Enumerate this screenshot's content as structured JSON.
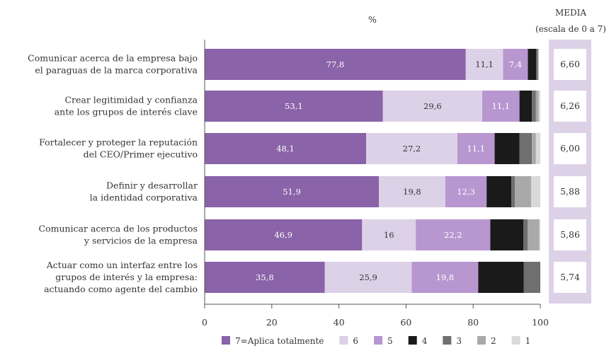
{
  "chart_data": {
    "type": "bar",
    "orientation": "horizontal",
    "stacked": true,
    "title": "",
    "xlabel": "%",
    "ylabel": "",
    "xlim": [
      0,
      100
    ],
    "xticks": [
      "0",
      "20",
      "40",
      "60",
      "80",
      "100"
    ],
    "grid": false,
    "legend_position": "bottom",
    "categories": [
      [
        "Comunicar acerca de la empresa bajo",
        "el paraguas de la marca corporativa"
      ],
      [
        "Crear legitimidad y confianza",
        "ante los grupos de interés clave"
      ],
      [
        "Fortalecer y proteger la reputación",
        "del CEO/Primer ejecutivo"
      ],
      [
        "Definir y desarrollar",
        "la identidad corporativa"
      ],
      [
        "Comunicar acerca de los productos",
        "y servicios de la empresa"
      ],
      [
        "Actuar como un interfaz entre los",
        "grupos de interés y la empresa:",
        "actuando como agente del cambio"
      ]
    ],
    "series": [
      {
        "name": "7=Aplica totalmente",
        "color": "#8a63a8",
        "label_color": "#ffffff",
        "values": [
          77.8,
          53.1,
          48.1,
          51.9,
          46.9,
          35.8
        ],
        "labels": [
          "77,8",
          "53,1",
          "48,1",
          "51,9",
          "46,9",
          "35,8"
        ]
      },
      {
        "name": "6",
        "color": "#dcd1e7",
        "label_color": "#333333",
        "values": [
          11.1,
          29.6,
          27.2,
          19.8,
          16,
          25.9
        ],
        "labels": [
          "11,1",
          "29,6",
          "27,2",
          "19,8",
          "16",
          "25,9"
        ]
      },
      {
        "name": "5",
        "color": "#b897d0",
        "label_color": "#ffffff",
        "values": [
          7.4,
          11.1,
          11.1,
          12.3,
          22.2,
          19.8
        ],
        "labels": [
          "7,4",
          "11,1",
          "11,1",
          "12,3",
          "22,2",
          "19,8"
        ]
      },
      {
        "name": "4",
        "color": "#1a1a1a",
        "label_color": "#ffffff",
        "values": [
          2.5,
          3.7,
          7.4,
          7.4,
          9.9,
          13.6
        ],
        "labels": [
          "",
          "",
          "",
          "",
          "",
          ""
        ]
      },
      {
        "name": "3",
        "color": "#6f6f6f",
        "label_color": "#ffffff",
        "values": [
          0.5,
          1.2,
          3.7,
          1.0,
          1.2,
          4.9
        ],
        "labels": [
          "",
          "",
          "",
          "",
          "",
          ""
        ]
      },
      {
        "name": "2",
        "color": "#a9a9a9",
        "label_color": "#ffffff",
        "values": [
          0.2,
          0.8,
          1.2,
          4.9,
          3.5,
          0
        ],
        "labels": [
          "",
          "",
          "",
          "",
          "",
          ""
        ]
      },
      {
        "name": "1",
        "color": "#d9d9d9",
        "label_color": "#ffffff",
        "values": [
          0,
          0.5,
          1.3,
          2.7,
          0.3,
          0
        ],
        "labels": [
          "",
          "",
          "",
          "",
          "",
          ""
        ]
      }
    ],
    "media": {
      "title_line1": "MEDIA",
      "title_line2": "(escala de 0 a 7)",
      "values": [
        "6,60",
        "6,26",
        "6,00",
        "5,88",
        "5,86",
        "5,74"
      ],
      "color": "#dcd1e7"
    }
  }
}
